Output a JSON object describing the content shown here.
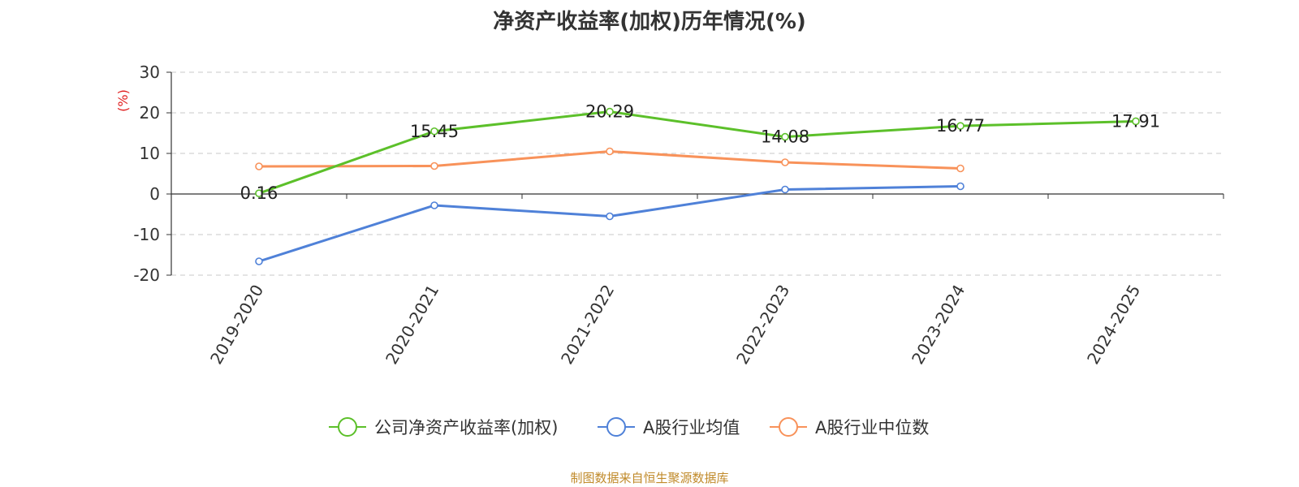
{
  "footer": "制图数据来自恒生聚源数据库",
  "colors": {
    "company": "#5cc02a",
    "avg": "#4f81d8",
    "median": "#f8925a",
    "footer": "#c08a2a"
  },
  "chart_data": {
    "type": "line",
    "title": "净资产收益率(加权)历年情况(%)",
    "ylabel": "(%)",
    "xlabel": "",
    "categories": [
      "2019-2020",
      "2020-2021",
      "2021-2022",
      "2022-2023",
      "2023-2024",
      "2024-2025"
    ],
    "ylim": [
      -20,
      30
    ],
    "yticks": [
      -20,
      -10,
      0,
      10,
      20,
      30
    ],
    "ytick_labels": [
      "-20",
      "-10",
      "0",
      "10",
      "20",
      "30"
    ],
    "grid": true,
    "legend_position": "bottom",
    "series": [
      {
        "name": "公司净资产收益率(加权)",
        "values": [
          0.16,
          15.45,
          20.29,
          14.08,
          16.77,
          17.91
        ],
        "labels": [
          "0.16",
          "15.45",
          "20.29",
          "14.08",
          "16.77",
          "17.91"
        ]
      },
      {
        "name": "A股行业均值",
        "values": [
          -16.6,
          -2.8,
          -5.5,
          1.1,
          1.9,
          null
        ]
      },
      {
        "name": "A股行业中位数",
        "values": [
          6.8,
          6.9,
          10.5,
          7.8,
          6.3,
          null
        ]
      }
    ]
  }
}
